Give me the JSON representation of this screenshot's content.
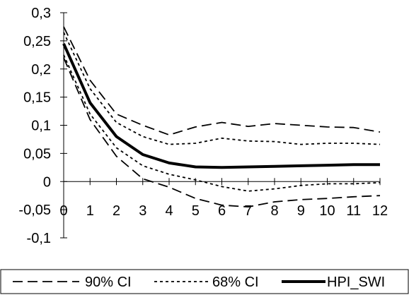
{
  "chart_data": {
    "type": "line",
    "x": [
      0,
      1,
      2,
      3,
      4,
      5,
      6,
      7,
      8,
      9,
      10,
      11,
      12
    ],
    "xlabel": "",
    "ylabel": "",
    "title": "",
    "ylim": [
      -0.1,
      0.3
    ],
    "xlim": [
      0,
      12
    ],
    "yticks": [
      -0.1,
      -0.05,
      0,
      0.05,
      0.1,
      0.15,
      0.2,
      0.25,
      0.3
    ],
    "ytick_labels": [
      "-0,1",
      "-0,05",
      "0",
      "0,05",
      "0,1",
      "0,15",
      "0,2",
      "0,25",
      "0,3"
    ],
    "xtick_labels": [
      "0",
      "1",
      "2",
      "3",
      "4",
      "5",
      "6",
      "7",
      "8",
      "9",
      "10",
      "11",
      "12"
    ],
    "grid": false,
    "legend_position": "bottom",
    "series": [
      {
        "name": "90% CI",
        "style": "long-dash",
        "upper": [
          0.275,
          0.18,
          0.12,
          0.1,
          0.083,
          0.097,
          0.105,
          0.098,
          0.103,
          0.1,
          0.097,
          0.096,
          0.088
        ],
        "lower": [
          0.22,
          0.11,
          0.045,
          0.005,
          -0.01,
          -0.03,
          -0.042,
          -0.045,
          -0.036,
          -0.032,
          -0.03,
          -0.027,
          -0.025
        ]
      },
      {
        "name": "68% CI",
        "style": "dotted",
        "upper": [
          0.265,
          0.165,
          0.105,
          0.08,
          0.066,
          0.068,
          0.077,
          0.072,
          0.071,
          0.066,
          0.068,
          0.068,
          0.066
        ],
        "lower": [
          0.225,
          0.12,
          0.06,
          0.028,
          0.013,
          0.003,
          -0.009,
          -0.017,
          -0.013,
          -0.007,
          -0.004,
          -0.004,
          -0.002
        ]
      },
      {
        "name": "HPI_SWI",
        "style": "solid-thick",
        "values": [
          0.245,
          0.14,
          0.08,
          0.048,
          0.033,
          0.026,
          0.025,
          0.026,
          0.027,
          0.028,
          0.029,
          0.03,
          0.03
        ]
      }
    ]
  }
}
